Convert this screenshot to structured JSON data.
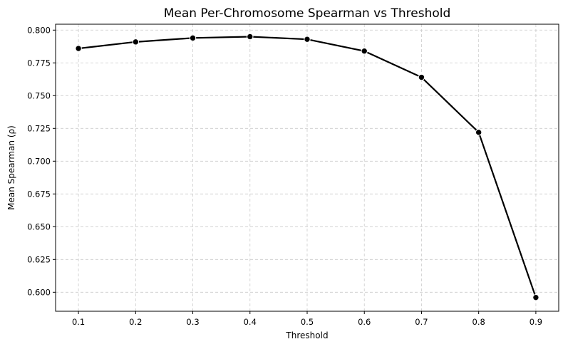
{
  "chart_data": {
    "type": "line",
    "title": "Mean Per-Chromosome Spearman vs Threshold",
    "xlabel": "Threshold",
    "ylabel": "Mean Spearman (ρ)",
    "x": [
      0.1,
      0.2,
      0.3,
      0.4,
      0.5,
      0.6,
      0.7,
      0.8,
      0.9
    ],
    "y": [
      0.786,
      0.791,
      0.794,
      0.795,
      0.793,
      0.784,
      0.764,
      0.722,
      0.596
    ],
    "xlim": [
      0.06,
      0.94
    ],
    "ylim": [
      0.5855,
      0.8045
    ],
    "xticks": [
      "0.1",
      "0.2",
      "0.3",
      "0.4",
      "0.5",
      "0.6",
      "0.7",
      "0.8",
      "0.9"
    ],
    "yticks": [
      "0.600",
      "0.625",
      "0.650",
      "0.675",
      "0.700",
      "0.725",
      "0.750",
      "0.775",
      "0.800"
    ],
    "grid": true,
    "line_color": "#000000",
    "marker": "circle"
  }
}
